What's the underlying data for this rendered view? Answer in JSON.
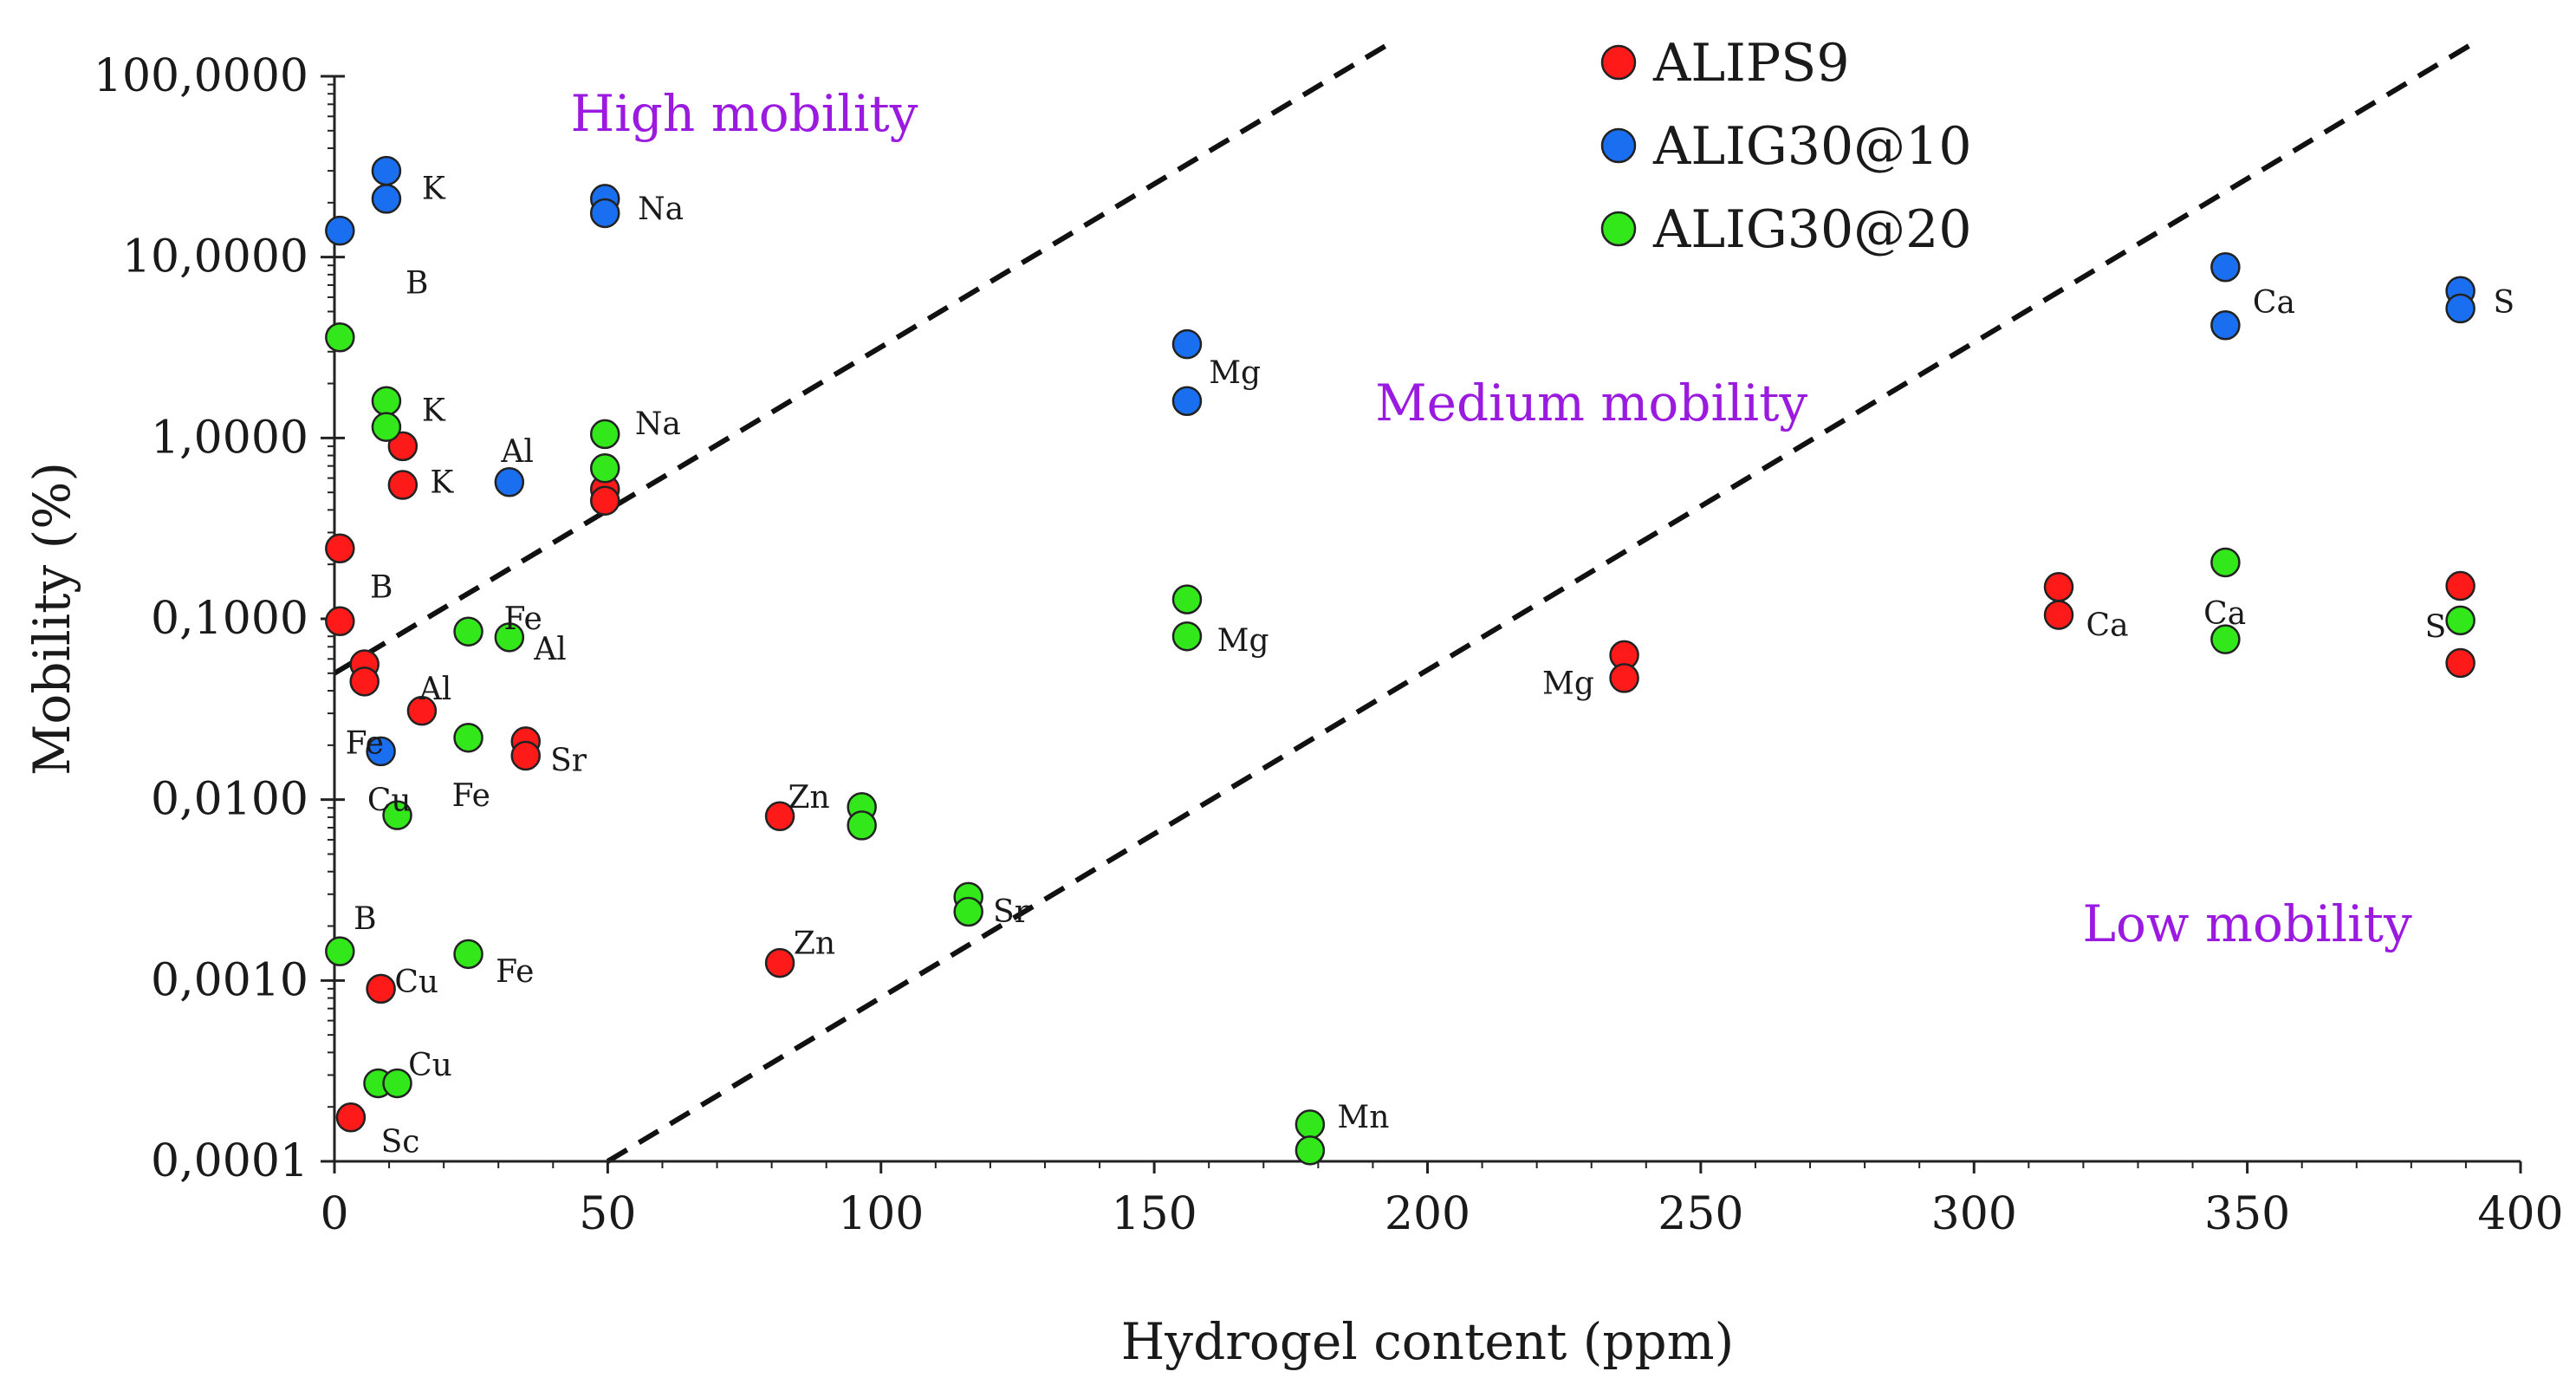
{
  "chart_data": {
    "type": "scatter",
    "title": "",
    "xlabel": "Hydrogel content (ppm)",
    "ylabel": "Mobility (%)",
    "xlim": [
      0,
      400
    ],
    "ylim": [
      0.0001,
      100
    ],
    "yscale": "log",
    "grid": false,
    "legend_position": "top-right",
    "x_ticks": [
      0,
      50,
      100,
      150,
      200,
      250,
      300,
      350,
      400
    ],
    "y_ticks": [
      {
        "value": 0.0001,
        "label": "0,0001"
      },
      {
        "value": 0.001,
        "label": "0,0010"
      },
      {
        "value": 0.01,
        "label": "0,0100"
      },
      {
        "value": 0.1,
        "label": "0,1000"
      },
      {
        "value": 1,
        "label": "1,0000"
      },
      {
        "value": 10,
        "label": "10,0000"
      },
      {
        "value": 100,
        "label": "100,0000"
      }
    ],
    "series": [
      {
        "name": "ALIPS9",
        "color": "#ff1a1a",
        "points": [
          {
            "x": 12.5,
            "y": 0.9
          },
          {
            "x": 12.5,
            "y": 0.55
          },
          {
            "x": 49.5,
            "y": 0.52
          },
          {
            "x": 49.5,
            "y": 0.45
          },
          {
            "x": 1,
            "y": 0.245
          },
          {
            "x": 1,
            "y": 0.097
          },
          {
            "x": 5.5,
            "y": 0.056
          },
          {
            "x": 5.5,
            "y": 0.045
          },
          {
            "x": 16,
            "y": 0.031
          },
          {
            "x": 35,
            "y": 0.021
          },
          {
            "x": 35,
            "y": 0.0175
          },
          {
            "x": 81.5,
            "y": 0.0081
          },
          {
            "x": 81.5,
            "y": 0.00125
          },
          {
            "x": 8.5,
            "y": 0.0009
          },
          {
            "x": 3,
            "y": 0.000175
          },
          {
            "x": 236,
            "y": 0.063
          },
          {
            "x": 236,
            "y": 0.047
          },
          {
            "x": 315.5,
            "y": 0.15
          },
          {
            "x": 315.5,
            "y": 0.105
          },
          {
            "x": 389,
            "y": 0.152
          },
          {
            "x": 389,
            "y": 0.057
          }
        ]
      },
      {
        "name": "ALIG30@10",
        "color": "#1a6ff0",
        "points": [
          {
            "x": 9.5,
            "y": 30
          },
          {
            "x": 9.5,
            "y": 21
          },
          {
            "x": 1,
            "y": 14
          },
          {
            "x": 49.5,
            "y": 21
          },
          {
            "x": 49.5,
            "y": 17.5
          },
          {
            "x": 32,
            "y": 0.57
          },
          {
            "x": 8.5,
            "y": 0.0185
          },
          {
            "x": 156,
            "y": 3.3
          },
          {
            "x": 156,
            "y": 1.6
          },
          {
            "x": 346,
            "y": 8.8
          },
          {
            "x": 346,
            "y": 4.2
          },
          {
            "x": 389,
            "y": 6.5
          },
          {
            "x": 389,
            "y": 5.2
          }
        ]
      },
      {
        "name": "ALIG30@20",
        "color": "#33e81a",
        "points": [
          {
            "x": 1,
            "y": 3.6
          },
          {
            "x": 9.5,
            "y": 1.6
          },
          {
            "x": 9.5,
            "y": 1.15
          },
          {
            "x": 49.5,
            "y": 1.05
          },
          {
            "x": 49.5,
            "y": 0.68
          },
          {
            "x": 24.5,
            "y": 0.085
          },
          {
            "x": 32,
            "y": 0.079
          },
          {
            "x": 24.5,
            "y": 0.022
          },
          {
            "x": 11.5,
            "y": 0.0082
          },
          {
            "x": 96.5,
            "y": 0.0091
          },
          {
            "x": 96.5,
            "y": 0.0072
          },
          {
            "x": 116,
            "y": 0.0029
          },
          {
            "x": 116,
            "y": 0.0024
          },
          {
            "x": 1,
            "y": 0.00145
          },
          {
            "x": 24.5,
            "y": 0.0014
          },
          {
            "x": 8,
            "y": 0.00027
          },
          {
            "x": 11.5,
            "y": 0.00027
          },
          {
            "x": 178.5,
            "y": 0.00016
          },
          {
            "x": 178.5,
            "y": 0.000115
          },
          {
            "x": 156,
            "y": 0.128
          },
          {
            "x": 156,
            "y": 0.08
          },
          {
            "x": 346,
            "y": 0.205
          },
          {
            "x": 346,
            "y": 0.077
          },
          {
            "x": 389,
            "y": 0.098
          }
        ]
      }
    ],
    "point_labels": [
      {
        "text": "K",
        "x": 16,
        "y": 24
      },
      {
        "text": "Na",
        "x": 55.5,
        "y": 18.5
      },
      {
        "text": "B",
        "x": 13,
        "y": 7.2
      },
      {
        "text": "Mg",
        "x": 160,
        "y": 2.3
      },
      {
        "text": "Ca",
        "x": 351,
        "y": 5.6
      },
      {
        "text": "S",
        "x": 395,
        "y": 5.6
      },
      {
        "text": "K",
        "x": 16,
        "y": 1.42
      },
      {
        "text": "K",
        "x": 17.5,
        "y": 0.57
      },
      {
        "text": "Na",
        "x": 55,
        "y": 1.2
      },
      {
        "text": "Al",
        "x": 30.5,
        "y": 0.84
      },
      {
        "text": "B",
        "x": 6.5,
        "y": 0.15
      },
      {
        "text": "Fe",
        "x": 31,
        "y": 0.1
      },
      {
        "text": "Al",
        "x": 36.5,
        "y": 0.068
      },
      {
        "text": "Mg",
        "x": 161.5,
        "y": 0.076
      },
      {
        "text": "Ca",
        "x": 320.5,
        "y": 0.092
      },
      {
        "text": "Ca",
        "x": 342,
        "y": 0.107
      },
      {
        "text": "S",
        "x": 382.5,
        "y": 0.09
      },
      {
        "text": "Mg",
        "x": 221,
        "y": 0.044
      },
      {
        "text": "Al",
        "x": 15.5,
        "y": 0.041
      },
      {
        "text": "Fe",
        "x": 2,
        "y": 0.0205
      },
      {
        "text": "Sr",
        "x": 39.5,
        "y": 0.0165
      },
      {
        "text": "Cu",
        "x": 6,
        "y": 0.0099
      },
      {
        "text": "Fe",
        "x": 21.5,
        "y": 0.0105
      },
      {
        "text": "Zn",
        "x": 83,
        "y": 0.0103
      },
      {
        "text": "Sr",
        "x": 120.5,
        "y": 0.0024
      },
      {
        "text": "B",
        "x": 3.5,
        "y": 0.0022
      },
      {
        "text": "Zn",
        "x": 84,
        "y": 0.0016
      },
      {
        "text": "Cu",
        "x": 11,
        "y": 0.00098
      },
      {
        "text": "Fe",
        "x": 29.5,
        "y": 0.00112
      },
      {
        "text": "Cu",
        "x": 13.5,
        "y": 0.00034
      },
      {
        "text": "Mn",
        "x": 183.5,
        "y": 0.000176
      },
      {
        "text": "Sc",
        "x": 8.5,
        "y": 0.000128
      }
    ],
    "annotations": [
      {
        "text": "High mobility",
        "x": 75,
        "y": 50,
        "color": "#9a1adf"
      },
      {
        "text": "Medium mobility",
        "x": 230,
        "y": 1.25,
        "color": "#9a1adf"
      },
      {
        "text": "Low mobility",
        "x": 350,
        "y": 0.00165,
        "color": "#9a1adf"
      }
    ],
    "boundary_lines": [
      {
        "style": "dashed",
        "points": [
          {
            "x": 0,
            "y": 0.05
          },
          {
            "x": 202,
            "y": 220
          }
        ]
      },
      {
        "style": "dashed",
        "points": [
          {
            "x": 50,
            "y": 0.0001
          },
          {
            "x": 391,
            "y": 150
          }
        ]
      }
    ]
  }
}
